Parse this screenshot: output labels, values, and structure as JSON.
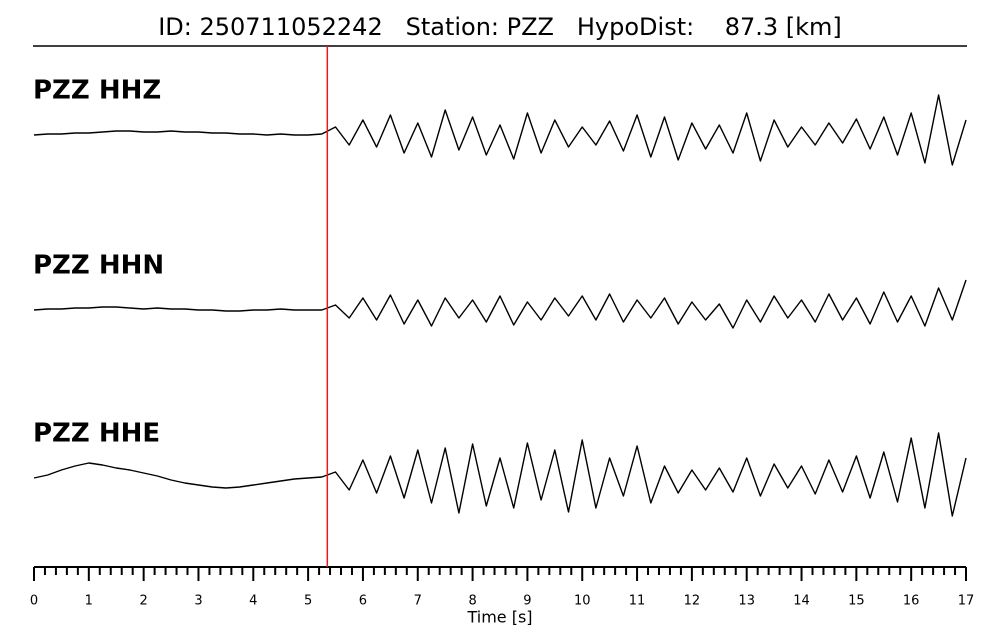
{
  "chart_data": {
    "type": "line",
    "title": "ID: 250711052242   Station: PZZ   HypoDist:    87.3 [km]",
    "xlabel": "Time [s]",
    "xlim": [
      0,
      17
    ],
    "xticks": [
      0,
      1,
      2,
      3,
      4,
      5,
      6,
      7,
      8,
      9,
      10,
      11,
      12,
      13,
      14,
      15,
      16,
      17
    ],
    "ylim": [
      -50,
      50
    ],
    "pick_time": 5.35,
    "pick_color": "#e41a1c",
    "label_color": "#4c9a00",
    "x": [
      0,
      0.25,
      0.5,
      0.75,
      1,
      1.25,
      1.5,
      1.75,
      2,
      2.25,
      2.5,
      2.75,
      3,
      3.25,
      3.5,
      3.75,
      4,
      4.25,
      4.5,
      4.75,
      5,
      5.25,
      5.5,
      5.75,
      6,
      6.25,
      6.5,
      6.75,
      7,
      7.25,
      7.5,
      7.75,
      8,
      8.25,
      8.5,
      8.75,
      9,
      9.25,
      9.5,
      9.75,
      10,
      10.25,
      10.5,
      10.75,
      11,
      11.25,
      11.5,
      11.75,
      12,
      12.25,
      12.5,
      12.75,
      13,
      13.25,
      13.5,
      13.75,
      14,
      14.25,
      14.5,
      14.75,
      15,
      15.25,
      15.5,
      15.75,
      16,
      16.25,
      16.5,
      16.75,
      17
    ],
    "series": [
      {
        "name": "PZZ HHZ",
        "color": "#000000",
        "values": [
          0,
          1,
          1,
          2,
          2,
          3,
          4,
          4,
          3,
          3,
          4,
          3,
          3,
          2,
          2,
          1,
          1,
          0,
          1,
          0,
          0,
          1,
          8,
          -10,
          15,
          -12,
          20,
          -18,
          12,
          -22,
          25,
          -15,
          18,
          -20,
          10,
          -24,
          22,
          -18,
          15,
          -12,
          8,
          -10,
          14,
          -16,
          20,
          -22,
          18,
          -25,
          12,
          -14,
          10,
          -18,
          22,
          -26,
          15,
          -12,
          8,
          -10,
          12,
          -8,
          16,
          -14,
          18,
          -20,
          22,
          -28,
          40,
          -30,
          15
        ]
      },
      {
        "name": "PZZ HHN",
        "color": "#000000",
        "values": [
          0,
          1,
          1,
          2,
          2,
          3,
          3,
          2,
          1,
          2,
          1,
          1,
          0,
          0,
          -1,
          -1,
          0,
          0,
          1,
          0,
          0,
          0,
          5,
          -8,
          12,
          -10,
          15,
          -14,
          10,
          -16,
          12,
          -8,
          10,
          -12,
          14,
          -15,
          8,
          -10,
          12,
          -6,
          14,
          -10,
          16,
          -12,
          10,
          -8,
          12,
          -14,
          8,
          -10,
          6,
          -18,
          10,
          -12,
          14,
          -8,
          10,
          -12,
          16,
          -10,
          12,
          -14,
          18,
          -12,
          14,
          -16,
          22,
          -10,
          30
        ]
      },
      {
        "name": "PZZ HHE",
        "color": "#000000",
        "values": [
          0,
          3,
          8,
          12,
          15,
          13,
          10,
          8,
          5,
          2,
          -2,
          -5,
          -7,
          -9,
          -10,
          -9,
          -7,
          -5,
          -3,
          -1,
          0,
          1,
          6,
          -12,
          18,
          -15,
          22,
          -20,
          28,
          -25,
          30,
          -35,
          34,
          -28,
          20,
          -30,
          35,
          -22,
          28,
          -34,
          38,
          -30,
          20,
          -18,
          32,
          -25,
          12,
          -15,
          8,
          -12,
          10,
          -14,
          20,
          -18,
          14,
          -10,
          12,
          -16,
          18,
          -14,
          22,
          -20,
          26,
          -24,
          40,
          -30,
          45,
          -38,
          20
        ]
      }
    ]
  }
}
